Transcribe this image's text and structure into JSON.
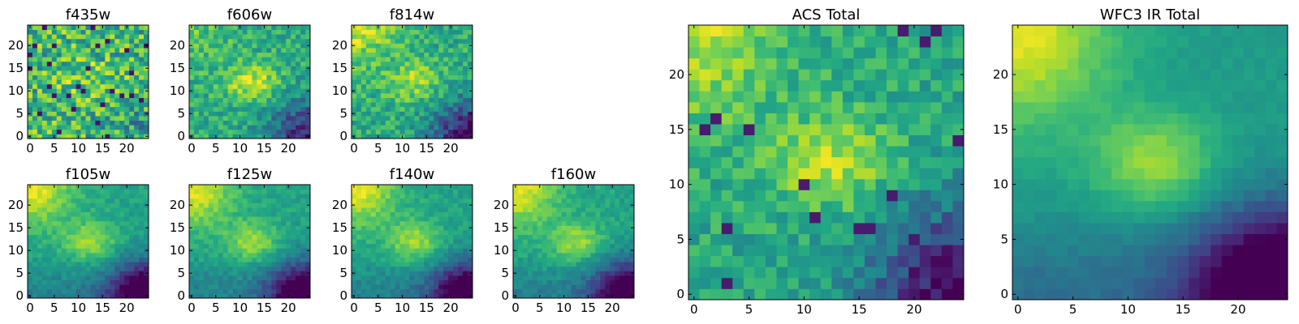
{
  "chart_data": {
    "type": "heatmap",
    "colormap": "viridis",
    "grid_size": 25,
    "extent": [
      -0.5,
      24.5
    ],
    "panels": [
      {
        "id": "f435w",
        "title": "f435w",
        "kind": "noisy-blue",
        "xticks": [
          0,
          5,
          10,
          15,
          20
        ],
        "yticks": [
          0,
          5,
          10,
          15,
          20
        ]
      },
      {
        "id": "f606w",
        "title": "f606w",
        "kind": "optical",
        "xticks": [
          0,
          5,
          10,
          15,
          20
        ],
        "yticks": [
          0,
          5,
          10,
          15,
          20
        ]
      },
      {
        "id": "f814w",
        "title": "f814w",
        "kind": "optical-red",
        "xticks": [
          0,
          5,
          10,
          15,
          20
        ],
        "yticks": [
          0,
          5,
          10,
          15,
          20
        ]
      },
      {
        "id": "f105w",
        "title": "f105w",
        "kind": "ir",
        "xticks": [
          0,
          5,
          10,
          15,
          20
        ],
        "yticks": [
          0,
          5,
          10,
          15,
          20
        ]
      },
      {
        "id": "f125w",
        "title": "f125w",
        "kind": "ir",
        "xticks": [
          0,
          5,
          10,
          15,
          20
        ],
        "yticks": [
          0,
          5,
          10,
          15,
          20
        ]
      },
      {
        "id": "f140w",
        "title": "f140w",
        "kind": "ir",
        "xticks": [
          0,
          5,
          10,
          15,
          20
        ],
        "yticks": [
          0,
          5,
          10,
          15,
          20
        ]
      },
      {
        "id": "f160w",
        "title": "f160w",
        "kind": "ir",
        "xticks": [
          0,
          5,
          10,
          15,
          20
        ],
        "yticks": [
          0,
          5,
          10,
          15,
          20
        ]
      },
      {
        "id": "acs_total",
        "title": "ACS Total",
        "kind": "acs-total",
        "xticks": [
          0,
          5,
          10,
          15,
          20
        ],
        "yticks": [
          0,
          5,
          10,
          15,
          20
        ]
      },
      {
        "id": "wfc3_ir_total",
        "title": "WFC3 IR Total",
        "kind": "ir-total",
        "xticks": [
          0,
          5,
          10,
          15,
          20
        ],
        "yticks": [
          0,
          5,
          10,
          15,
          20
        ]
      }
    ]
  }
}
